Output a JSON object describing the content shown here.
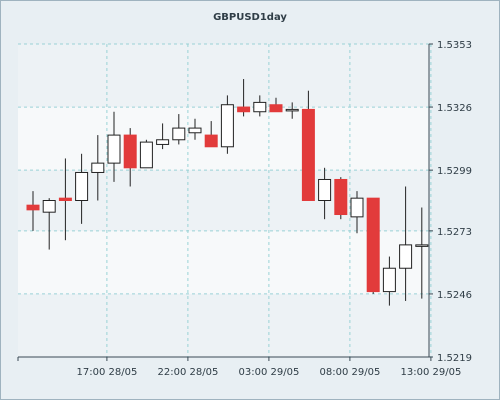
{
  "chart_data": {
    "type": "candlestick",
    "title": "GBPUSD1day",
    "y_ticks": [
      "1.5353",
      "1.5326",
      "1.5299",
      "1.5273",
      "1.5246",
      "1.5219"
    ],
    "y_tick_values": [
      1.5353,
      1.5326,
      1.5299,
      1.5273,
      1.5246,
      1.5219
    ],
    "ylim": [
      1.5219,
      1.5353
    ],
    "x_ticks": [
      "17:00 28/05",
      "22:00 28/05",
      "03:00 29/05",
      "08:00 29/05",
      "13:00 29/05"
    ],
    "x_tick_bar_index": [
      5,
      10,
      15,
      20,
      25
    ],
    "grid": true,
    "colors": {
      "up_fill": "#ffffff",
      "down_fill": "#e23b3b",
      "wick": "#222222",
      "grid": "#9ad2d6",
      "plot_bg": "#f7f9fa",
      "band": "#edf2f5"
    },
    "bars": [
      {
        "o": 1.5284,
        "h": 1.529,
        "l": 1.5273,
        "c": 1.5282
      },
      {
        "o": 1.5281,
        "h": 1.5287,
        "l": 1.5265,
        "c": 1.5286
      },
      {
        "o": 1.5287,
        "h": 1.5304,
        "l": 1.5269,
        "c": 1.5286
      },
      {
        "o": 1.5286,
        "h": 1.5306,
        "l": 1.5276,
        "c": 1.5298
      },
      {
        "o": 1.5298,
        "h": 1.5314,
        "l": 1.5286,
        "c": 1.5302
      },
      {
        "o": 1.5302,
        "h": 1.5324,
        "l": 1.5294,
        "c": 1.5314
      },
      {
        "o": 1.5314,
        "h": 1.5317,
        "l": 1.5292,
        "c": 1.53
      },
      {
        "o": 1.53,
        "h": 1.5312,
        "l": 1.5301,
        "c": 1.5311
      },
      {
        "o": 1.531,
        "h": 1.5319,
        "l": 1.5308,
        "c": 1.5312
      },
      {
        "o": 1.5312,
        "h": 1.5323,
        "l": 1.531,
        "c": 1.5317
      },
      {
        "o": 1.5315,
        "h": 1.5321,
        "l": 1.5312,
        "c": 1.5317
      },
      {
        "o": 1.5314,
        "h": 1.532,
        "l": 1.531,
        "c": 1.5309
      },
      {
        "o": 1.5309,
        "h": 1.5331,
        "l": 1.5306,
        "c": 1.5327
      },
      {
        "o": 1.5326,
        "h": 1.5338,
        "l": 1.5322,
        "c": 1.5324
      },
      {
        "o": 1.5324,
        "h": 1.5331,
        "l": 1.5322,
        "c": 1.5328
      },
      {
        "o": 1.5327,
        "h": 1.533,
        "l": 1.5325,
        "c": 1.5324
      },
      {
        "o": 1.5325,
        "h": 1.5328,
        "l": 1.5321,
        "c": 1.5325
      },
      {
        "o": 1.5325,
        "h": 1.5333,
        "l": 1.5286,
        "c": 1.5286
      },
      {
        "o": 1.5286,
        "h": 1.53,
        "l": 1.5278,
        "c": 1.5295
      },
      {
        "o": 1.5295,
        "h": 1.5296,
        "l": 1.5278,
        "c": 1.528
      },
      {
        "o": 1.5279,
        "h": 1.529,
        "l": 1.5272,
        "c": 1.5287
      },
      {
        "o": 1.5287,
        "h": 1.5287,
        "l": 1.5246,
        "c": 1.5247
      },
      {
        "o": 1.5247,
        "h": 1.5262,
        "l": 1.5241,
        "c": 1.5257
      },
      {
        "o": 1.5257,
        "h": 1.5292,
        "l": 1.5243,
        "c": 1.5267
      },
      {
        "o": 1.5267,
        "h": 1.5283,
        "l": 1.5244,
        "c": 1.5267
      }
    ]
  }
}
